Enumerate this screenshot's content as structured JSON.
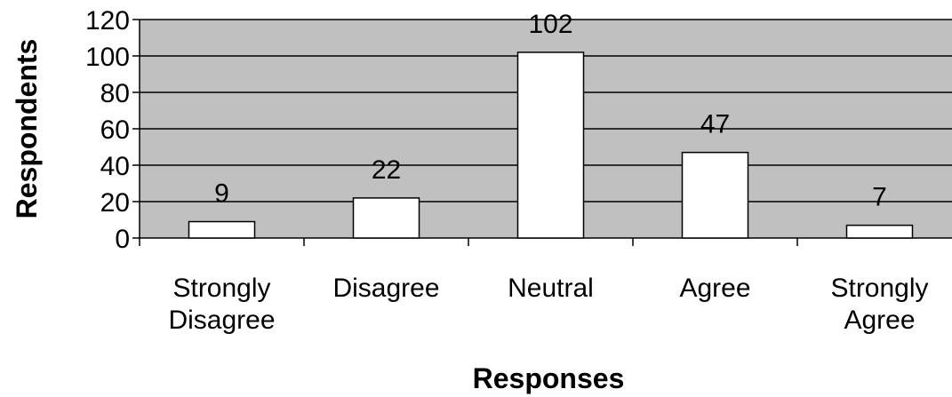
{
  "chart_data": {
    "type": "bar",
    "categories": [
      [
        "Strongly",
        "Disagree"
      ],
      [
        "Disagree"
      ],
      [
        "Neutral"
      ],
      [
        "Agree"
      ],
      [
        "Strongly",
        "Agree"
      ]
    ],
    "values": [
      9,
      22,
      102,
      47,
      7
    ],
    "data_labels": [
      "9",
      "22",
      "102",
      "47",
      "7"
    ],
    "xlabel": "Responses",
    "ylabel": "Respondents",
    "ylim": [
      0,
      120
    ],
    "yticks": [
      0,
      20,
      40,
      60,
      80,
      100,
      120
    ],
    "grid": true,
    "plot_background": "#c0c0c0",
    "bar_color": "#ffffff",
    "bar_edge_color": "#000000"
  }
}
